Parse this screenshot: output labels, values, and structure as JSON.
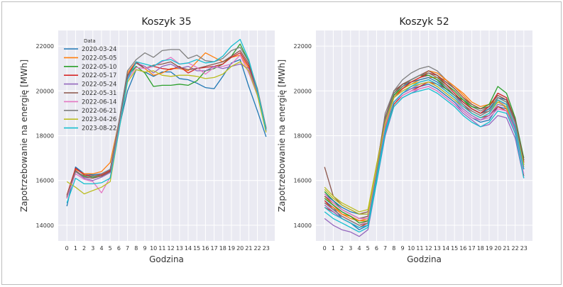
{
  "chart_data": [
    {
      "type": "line",
      "title": "Koszyk 35",
      "xlabel": "Godzina",
      "ylabel": "Zapotrzebowanie na energię [MWh]",
      "x": [
        0,
        1,
        2,
        3,
        4,
        5,
        6,
        7,
        8,
        9,
        10,
        11,
        12,
        13,
        14,
        15,
        16,
        17,
        18,
        19,
        20,
        21,
        22,
        23
      ],
      "xlim": [
        -1,
        24
      ],
      "ylim": [
        13300,
        22700
      ],
      "yticks": [
        14000,
        16000,
        18000,
        20000,
        22000
      ],
      "grid": true,
      "legend": {
        "title": "Data",
        "placement": "top-left"
      },
      "series": [
        {
          "name": "2020-03-24",
          "color": "#1f77b4",
          "values": [
            14850,
            16600,
            16300,
            16250,
            16300,
            16500,
            18300,
            20000,
            20950,
            20850,
            20650,
            20850,
            20850,
            20550,
            20500,
            20350,
            20150,
            20100,
            20650,
            21250,
            21400,
            20200,
            19100,
            17950
          ]
        },
        {
          "name": "2022-05-05",
          "color": "#ff7f0e",
          "values": [
            15300,
            16500,
            16300,
            16300,
            16400,
            16800,
            18600,
            20800,
            21300,
            21000,
            20700,
            20800,
            21000,
            21000,
            20900,
            21300,
            21700,
            21500,
            21300,
            21500,
            21600,
            21000,
            20000,
            18300
          ]
        },
        {
          "name": "2022-05-10",
          "color": "#2ca02c",
          "values": [
            15200,
            16400,
            16200,
            16150,
            16200,
            16400,
            18500,
            20650,
            21100,
            20800,
            20200,
            20250,
            20250,
            20300,
            20250,
            20450,
            20900,
            21000,
            21200,
            21550,
            22100,
            21300,
            19900,
            18200
          ]
        },
        {
          "name": "2022-05-17",
          "color": "#d62728",
          "values": [
            15350,
            16550,
            16250,
            16200,
            16250,
            16450,
            18550,
            20700,
            21300,
            21000,
            21100,
            21000,
            20950,
            21100,
            20800,
            21000,
            21050,
            21100,
            21200,
            21500,
            21700,
            21100,
            20000,
            18300
          ]
        },
        {
          "name": "2022-05-24",
          "color": "#9467bd",
          "values": [
            15250,
            16400,
            16100,
            16000,
            16150,
            16350,
            18400,
            20600,
            21250,
            21100,
            20800,
            21100,
            21200,
            21000,
            21100,
            20900,
            20900,
            21100,
            21000,
            21100,
            21200,
            21000,
            19900,
            18250
          ]
        },
        {
          "name": "2022-05-31",
          "color": "#8c564b",
          "values": [
            15250,
            16450,
            16150,
            16100,
            16200,
            16400,
            18450,
            20700,
            21250,
            21000,
            21150,
            21200,
            21300,
            21050,
            20950,
            21000,
            21100,
            21200,
            21300,
            21550,
            21800,
            21200,
            20050,
            18350
          ]
        },
        {
          "name": "2022-06-14",
          "color": "#e377c2",
          "values": [
            15200,
            16300,
            16050,
            15950,
            15450,
            16150,
            18300,
            20500,
            21050,
            21000,
            21100,
            21300,
            21500,
            21200,
            21250,
            21050,
            20750,
            21050,
            21100,
            21200,
            21600,
            20800,
            19800,
            18200
          ]
        },
        {
          "name": "2022-06-21",
          "color": "#7f7f7f",
          "values": [
            15300,
            16400,
            16150,
            16200,
            16300,
            16500,
            18600,
            20900,
            21400,
            21700,
            21500,
            21800,
            21850,
            21850,
            21450,
            21600,
            21350,
            21300,
            21450,
            21800,
            21950,
            21300,
            20100,
            18350
          ]
        },
        {
          "name": "2023-04-26",
          "color": "#bcbd22",
          "values": [
            15950,
            15700,
            15400,
            15550,
            15700,
            15950,
            18200,
            20400,
            20950,
            20850,
            20900,
            20700,
            20650,
            20700,
            20700,
            20650,
            20550,
            20600,
            20750,
            21100,
            21300,
            20900,
            19800,
            18150
          ]
        },
        {
          "name": "2023-08-22",
          "color": "#17becf",
          "values": [
            15000,
            16100,
            15850,
            15850,
            15900,
            16100,
            18200,
            20500,
            21300,
            21200,
            21100,
            21350,
            21400,
            21200,
            21250,
            21400,
            21250,
            21300,
            21550,
            22000,
            22300,
            21400,
            20000,
            18250
          ]
        }
      ]
    },
    {
      "type": "line",
      "title": "Koszyk 52",
      "xlabel": "Godzina",
      "ylabel": "Zapotrzebowanie na energię [MWh]",
      "x": [
        0,
        1,
        2,
        3,
        4,
        5,
        6,
        7,
        8,
        9,
        10,
        11,
        12,
        13,
        14,
        15,
        16,
        17,
        18,
        19,
        20,
        21,
        22,
        23
      ],
      "xlim": [
        -1,
        24
      ],
      "ylim": [
        13300,
        22700
      ],
      "yticks": [
        14000,
        16000,
        18000,
        20000,
        22000
      ],
      "grid": true,
      "series": [
        {
          "color": "#1f77b4",
          "values": [
            15100,
            14800,
            14300,
            14100,
            13800,
            14000,
            16200,
            18300,
            19500,
            19900,
            20100,
            20200,
            20300,
            20100,
            19800,
            19500,
            19100,
            18800,
            18600,
            18700,
            19300,
            19200,
            18300,
            16500
          ]
        },
        {
          "color": "#ff7f0e",
          "values": [
            15300,
            14900,
            14500,
            14300,
            14200,
            14200,
            16400,
            18500,
            19700,
            20100,
            20300,
            20500,
            20600,
            20600,
            20500,
            20200,
            19800,
            19400,
            19200,
            19400,
            19800,
            19600,
            18600,
            16800
          ]
        },
        {
          "color": "#2ca02c",
          "values": [
            15500,
            15100,
            14700,
            14500,
            14300,
            14400,
            16500,
            18700,
            19900,
            20300,
            20500,
            20700,
            20800,
            20600,
            20300,
            20000,
            19600,
            19200,
            19000,
            19200,
            19700,
            19500,
            18500,
            16700
          ]
        },
        {
          "color": "#d62728",
          "values": [
            14800,
            14600,
            14300,
            14100,
            13900,
            14100,
            16100,
            18200,
            19400,
            19800,
            20000,
            20200,
            20400,
            20300,
            20100,
            19800,
            19400,
            19000,
            18800,
            18900,
            19300,
            19100,
            18100,
            16200
          ]
        },
        {
          "color": "#9467bd",
          "values": [
            14300,
            14000,
            13800,
            13700,
            13500,
            13800,
            15900,
            18000,
            19300,
            19700,
            19900,
            20100,
            20200,
            20000,
            19700,
            19400,
            19000,
            18700,
            18400,
            18500,
            18900,
            18800,
            17900,
            16100
          ]
        },
        {
          "color": "#8c564b",
          "values": [
            16600,
            15300,
            14900,
            14700,
            14500,
            14600,
            16600,
            18800,
            20000,
            20300,
            20400,
            20600,
            20700,
            20500,
            20200,
            19800,
            19500,
            19200,
            19000,
            19100,
            19500,
            19400,
            18500,
            16800
          ]
        },
        {
          "color": "#e377c2",
          "values": [
            15000,
            14700,
            14400,
            14200,
            14000,
            14200,
            16200,
            18300,
            19500,
            19800,
            20000,
            20100,
            20200,
            20000,
            19700,
            19400,
            19100,
            18800,
            18700,
            18800,
            19200,
            19100,
            18200,
            16300
          ]
        },
        {
          "color": "#7f7f7f",
          "values": [
            15200,
            14900,
            14600,
            14400,
            14200,
            14300,
            16500,
            19000,
            20000,
            20500,
            20800,
            21000,
            21100,
            20900,
            20500,
            20100,
            19700,
            19300,
            19100,
            19300,
            19900,
            19700,
            18700,
            16900
          ]
        },
        {
          "color": "#bcbd22",
          "values": [
            15700,
            15300,
            15000,
            14800,
            14600,
            14700,
            16700,
            18700,
            19800,
            20100,
            20300,
            20400,
            20500,
            20300,
            20000,
            19700,
            19400,
            19100,
            18900,
            19100,
            19600,
            19400,
            18600,
            16900
          ]
        },
        {
          "color": "#17becf",
          "values": [
            14600,
            14300,
            14100,
            13900,
            13700,
            13900,
            15900,
            18100,
            19300,
            19700,
            19900,
            20000,
            20100,
            19900,
            19600,
            19300,
            18900,
            18600,
            18400,
            18600,
            19100,
            19000,
            18100,
            16100
          ]
        },
        {
          "color": "#1f77b4",
          "values": [
            15400,
            15100,
            14800,
            14600,
            14500,
            14500,
            16500,
            18600,
            19800,
            20200,
            20400,
            20500,
            20600,
            20400,
            20100,
            19800,
            19500,
            19200,
            19000,
            19200,
            19700,
            19600,
            18600,
            16900
          ]
        },
        {
          "color": "#ff7f0e",
          "values": [
            15000,
            14800,
            14500,
            14400,
            14200,
            14300,
            16300,
            18400,
            19700,
            20100,
            20400,
            20600,
            20900,
            20800,
            20500,
            20200,
            19900,
            19500,
            19300,
            19400,
            19600,
            19200,
            18400,
            16600
          ]
        },
        {
          "color": "#2ca02c",
          "values": [
            15200,
            14900,
            14600,
            14400,
            14100,
            14200,
            16400,
            18600,
            19800,
            20200,
            20500,
            20700,
            20700,
            20500,
            20100,
            19800,
            19600,
            19300,
            19200,
            19400,
            20200,
            19900,
            18800,
            17000
          ]
        },
        {
          "color": "#d62728",
          "values": [
            15100,
            14700,
            14400,
            14200,
            14000,
            14100,
            16300,
            18500,
            19700,
            20100,
            20400,
            20600,
            20800,
            20700,
            20300,
            19900,
            19500,
            19200,
            19000,
            19300,
            19900,
            19700,
            18700,
            16800
          ]
        },
        {
          "color": "#9467bd",
          "values": [
            14900,
            14600,
            14300,
            14100,
            13900,
            14000,
            16100,
            18300,
            19500,
            19900,
            20100,
            20300,
            20400,
            20200,
            19900,
            19600,
            19200,
            18900,
            18700,
            18900,
            19400,
            19300,
            18300,
            16500
          ]
        },
        {
          "color": "#8c564b",
          "values": [
            15300,
            15000,
            14700,
            14500,
            14300,
            14400,
            16600,
            18800,
            19900,
            20300,
            20500,
            20700,
            20900,
            20700,
            20400,
            20100,
            19700,
            19400,
            19200,
            19300,
            19800,
            19600,
            18700,
            16900
          ]
        },
        {
          "color": "#e377c2",
          "values": [
            15400,
            15000,
            14700,
            14500,
            14300,
            14300,
            16400,
            18500,
            19700,
            20000,
            20200,
            20400,
            20500,
            20300,
            20000,
            19700,
            19400,
            19100,
            18900,
            19100,
            19500,
            19400,
            18500,
            16700
          ]
        },
        {
          "color": "#7f7f7f",
          "values": [
            15000,
            14700,
            14400,
            14200,
            14000,
            14100,
            16300,
            18700,
            19900,
            20200,
            20500,
            20700,
            20800,
            20600,
            20200,
            19800,
            19400,
            19100,
            18900,
            19100,
            19700,
            19500,
            18600,
            16700
          ]
        },
        {
          "color": "#bcbd22",
          "values": [
            15600,
            15200,
            14900,
            14700,
            14500,
            14500,
            16600,
            18600,
            19700,
            20000,
            20200,
            20300,
            20400,
            20200,
            19900,
            19600,
            19300,
            19000,
            18800,
            19000,
            19500,
            19300,
            18400,
            16700
          ]
        },
        {
          "color": "#17becf",
          "values": [
            14800,
            14500,
            14300,
            14100,
            13900,
            14000,
            16100,
            18200,
            19500,
            19900,
            20200,
            20400,
            20500,
            20300,
            20000,
            19700,
            19300,
            19000,
            18800,
            19000,
            19600,
            19400,
            18400,
            16500
          ]
        }
      ]
    }
  ]
}
